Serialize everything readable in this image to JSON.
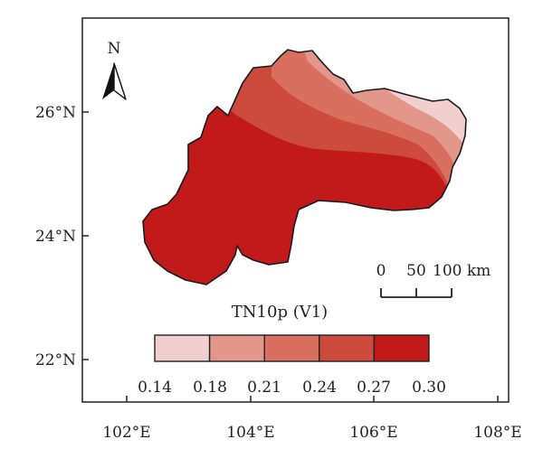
{
  "map": {
    "title": "TN10p (V1)",
    "north_label": "N",
    "x_ticks": [
      "102°E",
      "104°E",
      "106°E",
      "108°E"
    ],
    "y_ticks": [
      "26°N",
      "24°N",
      "22°N"
    ],
    "legend": {
      "breaks": [
        "0.14",
        "0.18",
        "0.21",
        "0.24",
        "0.27",
        "0.30"
      ],
      "colors": [
        "#f2cfcf",
        "#e3968a",
        "#d9705f",
        "#cc4b3c",
        "#c21a1a"
      ]
    },
    "scale_bar": {
      "labels": [
        "0",
        "50",
        "100 km"
      ]
    },
    "colors": {
      "outline": "#1a1a1a",
      "high": "#c21a1a"
    }
  }
}
